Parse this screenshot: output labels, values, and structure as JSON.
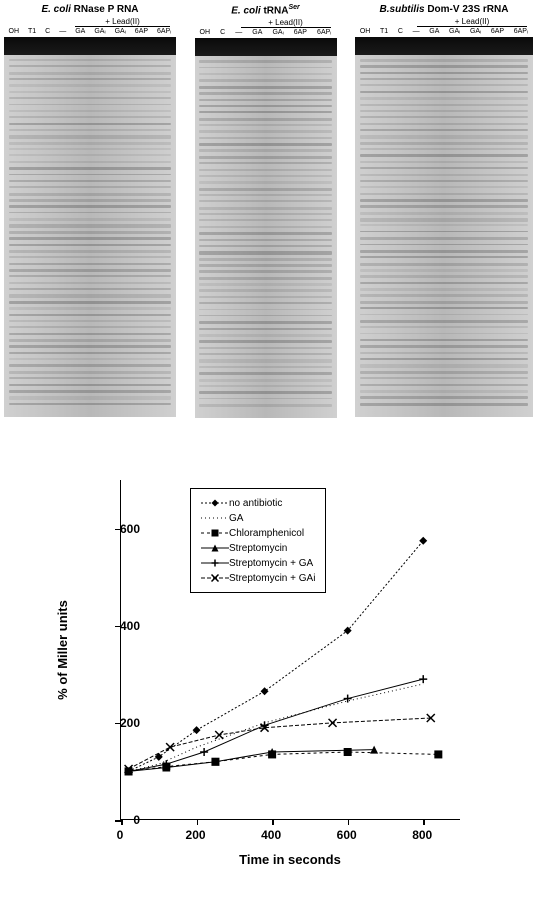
{
  "gels": [
    {
      "title_italic": "E. coli",
      "title_rest": " RNase P RNA",
      "lead_label": "+ Lead(II)",
      "lead_width": 95,
      "lanes": [
        "OH",
        "T1",
        "C",
        "—",
        "GA",
        "GAᵢ",
        "GAᵢ",
        "6AP",
        "6APᵢ"
      ],
      "width_class": "g1",
      "asterisks": []
    },
    {
      "title_italic": "E. coli",
      "title_rest": " tRNA",
      "title_sup": "Ser",
      "lead_label": "+ Lead(II)",
      "lead_width": 90,
      "lanes": [
        "OH",
        "C",
        "—",
        "GA",
        "GAᵢ",
        "6AP",
        "6APᵢ"
      ],
      "width_class": "g2",
      "asterisks": []
    },
    {
      "title_italic": "B.subtilis",
      "title_rest": " Dom-V 23S rRNA",
      "lead_label": "+ Lead(II)",
      "lead_width": 110,
      "lanes": [
        "OH",
        "T1",
        "C",
        "—",
        "GA",
        "GAᵢ",
        "GAᵢ",
        "6AP",
        "6APᵢ"
      ],
      "width_class": "g3",
      "asterisks": [
        65,
        110,
        228,
        238,
        310
      ]
    }
  ],
  "chart": {
    "xlim": [
      0,
      900
    ],
    "ylim": [
      0,
      700
    ],
    "xticks": [
      0,
      200,
      400,
      600,
      800
    ],
    "yticks": [
      0,
      200,
      400,
      600
    ],
    "x_title": "Time in seconds",
    "y_title": "% of Miller units",
    "bg": "#ffffff",
    "axis_color": "#000000",
    "legend_items": [
      {
        "label": "no antibiotic",
        "marker": "diamond-filled",
        "dash": "2,2"
      },
      {
        "label": "GA",
        "marker": "none",
        "dash": "1,3"
      },
      {
        "label": "Chloramphenicol",
        "marker": "square-filled",
        "dash": "3,3"
      },
      {
        "label": "Streptomycin",
        "marker": "triangle-filled",
        "dash": "none"
      },
      {
        "label": "Streptomycin + GA",
        "marker": "plus",
        "dash": "none"
      },
      {
        "label": "Streptomycin + GAi",
        "marker": "x",
        "dash": "4,2"
      }
    ],
    "series": {
      "no_antibiotic": {
        "marker": "diamond-filled",
        "dash": "2,2",
        "points": [
          [
            20,
            100
          ],
          [
            100,
            130
          ],
          [
            200,
            185
          ],
          [
            380,
            265
          ],
          [
            600,
            390
          ],
          [
            800,
            575
          ]
        ]
      },
      "ga": {
        "marker": "none",
        "dash": "1,3",
        "points": [
          [
            20,
            100
          ],
          [
            100,
            115
          ],
          [
            200,
            150
          ],
          [
            380,
            200
          ],
          [
            600,
            245
          ],
          [
            800,
            280
          ]
        ]
      },
      "chloramphenicol": {
        "marker": "square-filled",
        "dash": "3,3",
        "points": [
          [
            20,
            100
          ],
          [
            120,
            110
          ],
          [
            250,
            120
          ],
          [
            400,
            135
          ],
          [
            600,
            140
          ],
          [
            840,
            135
          ]
        ]
      },
      "streptomycin": {
        "marker": "triangle-filled",
        "dash": "none",
        "points": [
          [
            20,
            100
          ],
          [
            120,
            108
          ],
          [
            250,
            120
          ],
          [
            400,
            140
          ],
          [
            670,
            145
          ]
        ]
      },
      "streptomycin_ga": {
        "marker": "plus",
        "dash": "none",
        "points": [
          [
            20,
            100
          ],
          [
            120,
            115
          ],
          [
            220,
            140
          ],
          [
            380,
            195
          ],
          [
            600,
            250
          ],
          [
            800,
            290
          ]
        ]
      },
      "streptomycin_gai": {
        "marker": "x",
        "dash": "4,2",
        "points": [
          [
            20,
            105
          ],
          [
            130,
            150
          ],
          [
            260,
            175
          ],
          [
            380,
            190
          ],
          [
            560,
            200
          ],
          [
            820,
            210
          ]
        ]
      }
    }
  }
}
